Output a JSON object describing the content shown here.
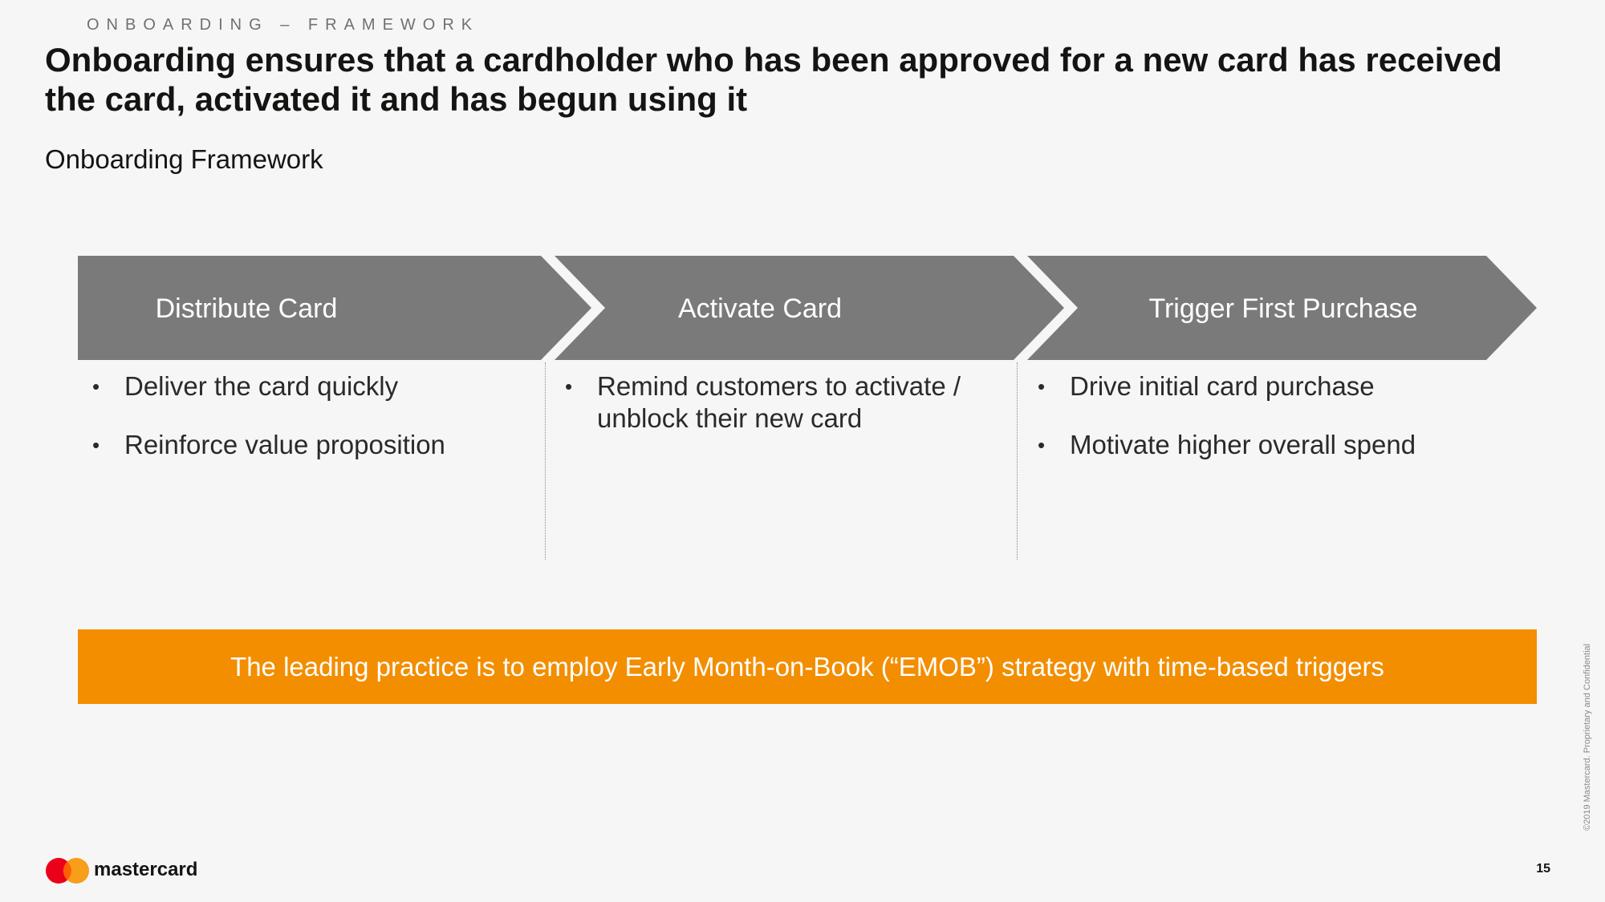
{
  "header": {
    "eyebrow": "ONBOARDING – FRAMEWORK",
    "headline": "Onboarding ensures that a cardholder who has been approved for a new card has received the card, activated it and has begun using it",
    "subtitle": "Onboarding Framework"
  },
  "stages": [
    {
      "label": "Distribute Card",
      "bullets": [
        "Deliver the card quickly",
        "Reinforce value proposition"
      ]
    },
    {
      "label": "Activate Card",
      "bullets": [
        "Remind customers to activate / unblock their new card"
      ]
    },
    {
      "label": "Trigger First Purchase",
      "bullets": [
        "Drive initial card purchase",
        "Motivate higher overall spend"
      ]
    }
  ],
  "banner": {
    "text": "The leading practice is to employ Early Month-on-Book (“EMOB”) strategy with time-based triggers"
  },
  "footer": {
    "brand": "mastercard",
    "copyright": "©2019 Mastercard. Proprietary and Confidential",
    "page_number": "15"
  },
  "colors": {
    "chevron": "#7a7a7a",
    "banner": "#f28e00",
    "logo_red": "#eb001b",
    "logo_orange": "#f79e1b",
    "logo_overlap": "#ff5f00"
  },
  "icons": {
    "bullet": "•",
    "logo": "mastercard-logo-icon"
  }
}
